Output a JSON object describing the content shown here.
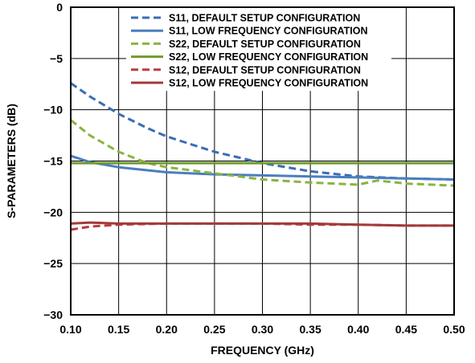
{
  "chart_data": {
    "type": "line",
    "title": "",
    "xlabel": "FREQUENCY (GHz)",
    "ylabel": "S-PARAMETERS (dB)",
    "xlim": [
      0.1,
      0.5
    ],
    "ylim": [
      -30,
      0
    ],
    "x_ticks": [
      "0.10",
      "0.15",
      "0.20",
      "0.25",
      "0.30",
      "0.35",
      "0.40",
      "0.45",
      "0.50"
    ],
    "y_ticks": [
      "0",
      "−5",
      "−10",
      "−15",
      "−20",
      "−25",
      "−30"
    ],
    "grid": true,
    "legend_position": "top-right",
    "series": [
      {
        "name": "S11, DEFAULT SETUP CONFIGURATION",
        "color": "#3a6db5",
        "dash": true,
        "x": [
          0.1,
          0.12,
          0.15,
          0.18,
          0.2,
          0.25,
          0.3,
          0.35,
          0.4,
          0.45,
          0.5
        ],
        "y": [
          -7.4,
          -8.7,
          -10.4,
          -11.8,
          -12.6,
          -14.1,
          -15.2,
          -16.0,
          -16.5,
          -16.7,
          -16.8
        ]
      },
      {
        "name": "S11, LOW FREQUENCY CONFIGURATION",
        "color": "#4a7ebf",
        "dash": false,
        "x": [
          0.1,
          0.12,
          0.15,
          0.18,
          0.2,
          0.25,
          0.3,
          0.35,
          0.4,
          0.45,
          0.5
        ],
        "y": [
          -14.5,
          -15.1,
          -15.6,
          -15.9,
          -16.1,
          -16.3,
          -16.4,
          -16.5,
          -16.6,
          -16.7,
          -16.8
        ]
      },
      {
        "name": "S22, DEFAULT SETUP CONFIGURATION",
        "color": "#8ab440",
        "dash": true,
        "x": [
          0.1,
          0.12,
          0.15,
          0.18,
          0.2,
          0.25,
          0.3,
          0.35,
          0.4,
          0.42,
          0.45,
          0.5
        ],
        "y": [
          -11.0,
          -12.5,
          -14.1,
          -15.2,
          -15.6,
          -16.2,
          -16.8,
          -17.1,
          -17.3,
          -16.9,
          -17.2,
          -17.4
        ]
      },
      {
        "name": "S22, LOW FREQUENCY CONFIGURATION",
        "color": "#6f9a2e",
        "dash": false,
        "x": [
          0.1,
          0.15,
          0.2,
          0.25,
          0.3,
          0.35,
          0.4,
          0.45,
          0.5
        ],
        "y": [
          -15.2,
          -15.2,
          -15.2,
          -15.2,
          -15.2,
          -15.2,
          -15.2,
          -15.2,
          -15.2
        ]
      },
      {
        "name": "S12, DEFAULT SETUP CONFIGURATION",
        "color": "#b93d3d",
        "dash": true,
        "x": [
          0.1,
          0.12,
          0.15,
          0.2,
          0.25,
          0.3,
          0.35,
          0.4,
          0.45,
          0.5
        ],
        "y": [
          -21.7,
          -21.4,
          -21.2,
          -21.1,
          -21.1,
          -21.1,
          -21.2,
          -21.2,
          -21.3,
          -21.3
        ]
      },
      {
        "name": "S12, LOW FREQUENCY CONFIGURATION",
        "color": "#a33a3a",
        "dash": false,
        "x": [
          0.1,
          0.12,
          0.15,
          0.2,
          0.25,
          0.3,
          0.35,
          0.4,
          0.45,
          0.5
        ],
        "y": [
          -21.1,
          -21.0,
          -21.1,
          -21.1,
          -21.1,
          -21.1,
          -21.1,
          -21.2,
          -21.3,
          -21.3
        ]
      }
    ]
  }
}
